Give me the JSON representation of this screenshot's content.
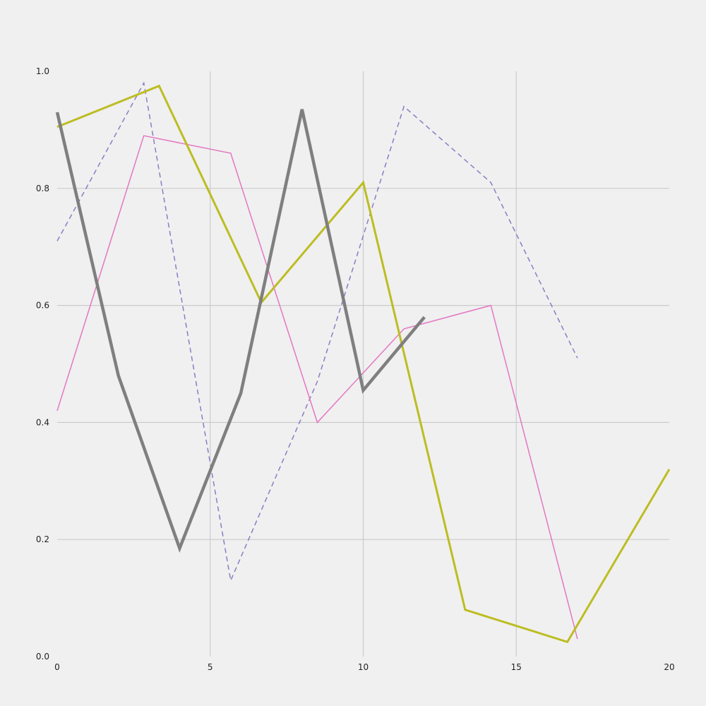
{
  "chart_data": {
    "type": "line",
    "title": "",
    "xlabel": "",
    "ylabel": "",
    "xlim": [
      0,
      20
    ],
    "ylim": [
      0,
      1
    ],
    "xticks": [
      0,
      5,
      10,
      15,
      20
    ],
    "yticks": [
      0.0,
      0.2,
      0.4,
      0.6,
      0.8,
      1.0
    ],
    "xtick_labels": [
      "0",
      "5",
      "10",
      "15",
      "20"
    ],
    "ytick_labels": [
      "0.0",
      "0.2",
      "0.4",
      "0.6",
      "0.8",
      "1.0"
    ],
    "grid": true,
    "legend": false,
    "series": [
      {
        "color": "#8b7cc4",
        "style": "dashed",
        "line_weight": "thin",
        "points": [
          [
            0,
            0.71
          ],
          [
            2.83,
            0.98
          ],
          [
            5.67,
            0.13
          ],
          [
            8.5,
            0.47
          ],
          [
            11.33,
            0.94
          ],
          [
            14.17,
            0.81
          ],
          [
            17.0,
            0.51
          ]
        ]
      },
      {
        "color": "#e377c2",
        "style": "solid",
        "line_weight": "thin",
        "points": [
          [
            0,
            0.42
          ],
          [
            2.83,
            0.89
          ],
          [
            5.67,
            0.86
          ],
          [
            8.5,
            0.4
          ],
          [
            11.33,
            0.56
          ],
          [
            14.17,
            0.6
          ],
          [
            17.0,
            0.03
          ]
        ]
      },
      {
        "color": "#bcbd22",
        "style": "solid",
        "line_weight": "medium",
        "points": [
          [
            0,
            0.905
          ],
          [
            3.33,
            0.975
          ],
          [
            6.67,
            0.605
          ],
          [
            10.0,
            0.81
          ],
          [
            13.33,
            0.08
          ],
          [
            16.67,
            0.025
          ],
          [
            20.0,
            0.32
          ]
        ]
      },
      {
        "color": "#7f7f7f",
        "style": "solid",
        "line_weight": "thick",
        "points": [
          [
            0,
            0.93
          ],
          [
            2.0,
            0.48
          ],
          [
            4.0,
            0.185
          ],
          [
            6.0,
            0.45
          ],
          [
            8.0,
            0.935
          ],
          [
            10.0,
            0.455
          ],
          [
            12.0,
            0.58
          ]
        ]
      }
    ]
  }
}
